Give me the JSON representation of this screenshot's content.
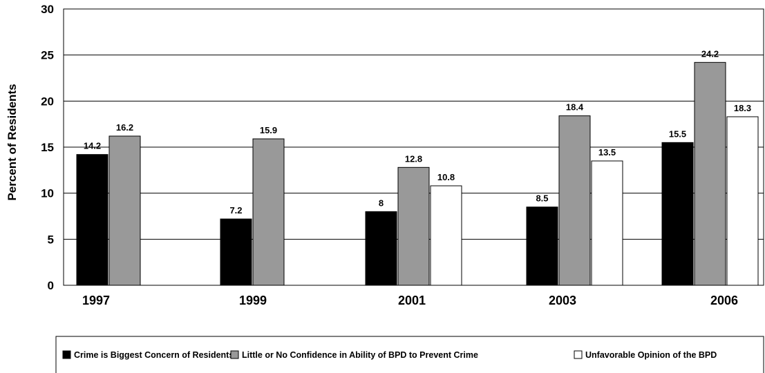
{
  "chart_data": {
    "type": "bar",
    "categories": [
      "1997",
      "1999",
      "2001",
      "2003",
      "2006"
    ],
    "series": [
      {
        "name": "Crime is Biggest Concern of Residents",
        "values": [
          14.2,
          7.2,
          8,
          8.5,
          15.5
        ],
        "color": "#000000"
      },
      {
        "name": "Little or No Confidence in Ability of BPD to Prevent Crime",
        "values": [
          16.2,
          15.9,
          12.8,
          18.4,
          24.2
        ],
        "color": "#999999"
      },
      {
        "name": "Unfavorable Opinion of the BPD",
        "values": [
          null,
          null,
          10.8,
          13.5,
          18.3
        ],
        "color": "#ffffff"
      }
    ],
    "title": "",
    "xlabel": "",
    "ylabel": "Percent of Residents",
    "ylim": [
      0,
      30
    ],
    "yticks": [
      0,
      5,
      10,
      15,
      20,
      25,
      30
    ],
    "grid": true,
    "legend_position": "bottom"
  }
}
